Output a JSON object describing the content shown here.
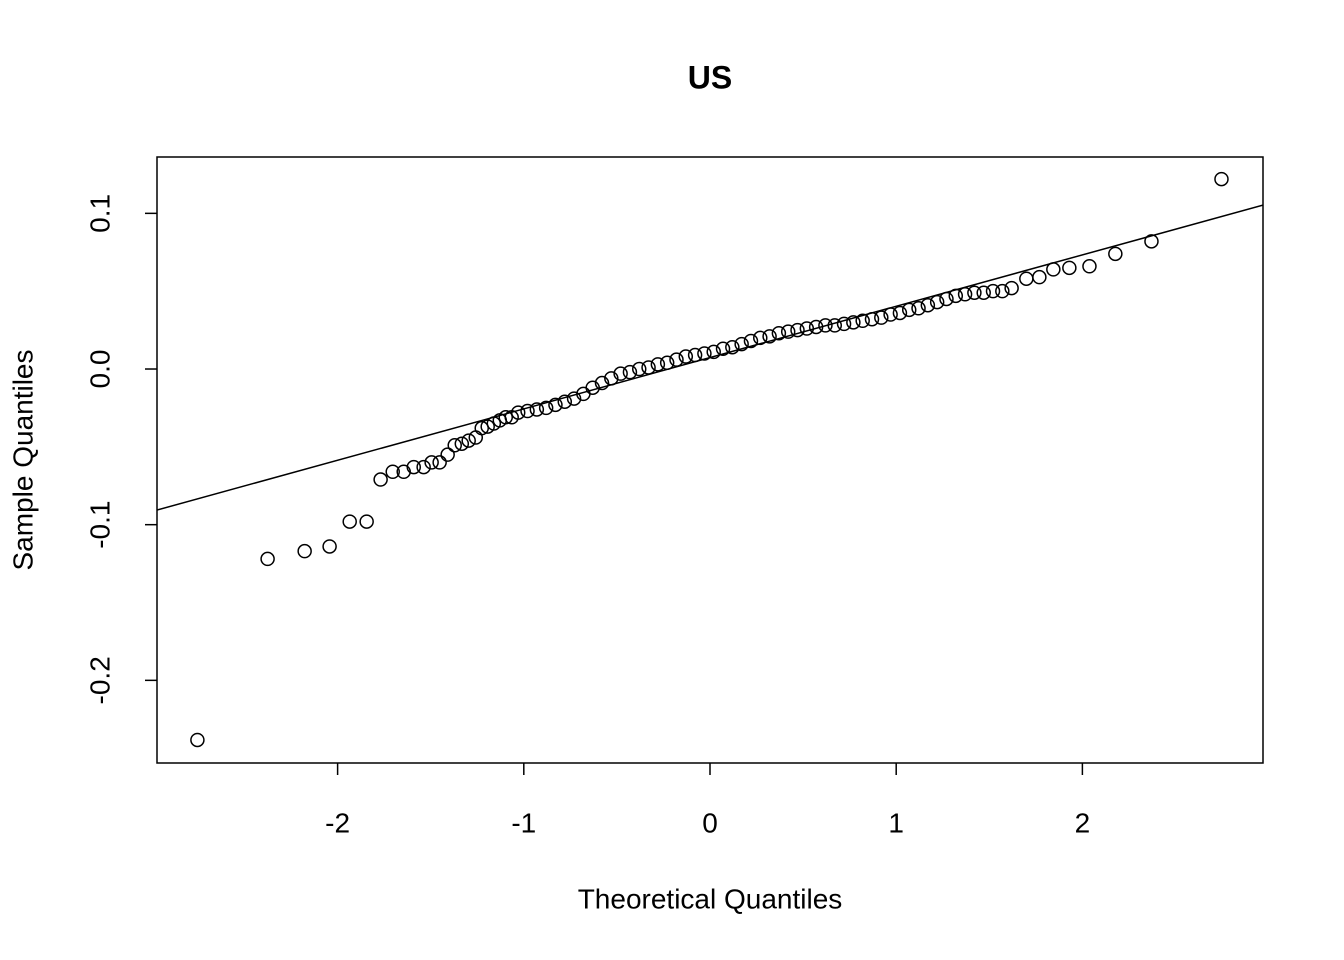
{
  "chart_data": {
    "type": "scatter",
    "title": "US",
    "x_label": "Theoretical Quantiles",
    "y_label": "Sample Quantiles",
    "xlim": [
      -2.97,
      2.97
    ],
    "ylim": [
      -0.2531,
      0.1362
    ],
    "xticks": [
      -2,
      -1,
      0,
      1,
      2
    ],
    "yticks": [
      -0.2,
      -0.1,
      {
        "value": 0,
        "label": "0.0"
      },
      0.1
    ],
    "x": [
      -2.753,
      -2.376,
      -2.177,
      -2.043,
      -1.935,
      -1.844,
      -1.769,
      -1.704,
      -1.645,
      -1.591,
      -1.538,
      -1.495,
      -1.452,
      -1.409,
      -1.371,
      -1.333,
      -1.296,
      -1.258,
      -1.226,
      -1.194,
      -1.161,
      -1.129,
      -1.097,
      -1.065,
      -1.03,
      -0.98,
      -0.93,
      -0.88,
      -0.83,
      -0.78,
      -0.73,
      -0.68,
      -0.63,
      -0.58,
      -0.53,
      -0.48,
      -0.43,
      -0.38,
      -0.33,
      -0.28,
      -0.23,
      -0.18,
      -0.13,
      -0.08,
      -0.03,
      0.02,
      0.07,
      0.12,
      0.17,
      0.22,
      0.27,
      0.32,
      0.37,
      0.42,
      0.47,
      0.52,
      0.57,
      0.62,
      0.67,
      0.72,
      0.77,
      0.82,
      0.87,
      0.92,
      0.97,
      1.02,
      1.07,
      1.12,
      1.17,
      1.22,
      1.27,
      1.32,
      1.37,
      1.42,
      1.47,
      1.52,
      1.57,
      1.62,
      1.699,
      1.769,
      1.844,
      1.93,
      2.038,
      2.177,
      2.371,
      2.747
    ],
    "y": [
      -0.2383,
      -0.122,
      -0.117,
      -0.114,
      -0.098,
      -0.098,
      -0.071,
      -0.066,
      -0.066,
      -0.063,
      -0.063,
      -0.06,
      -0.06,
      -0.055,
      -0.049,
      -0.048,
      -0.046,
      -0.044,
      -0.038,
      -0.037,
      -0.035,
      -0.033,
      -0.031,
      -0.031,
      -0.028,
      -0.027,
      -0.026,
      -0.025,
      -0.023,
      -0.021,
      -0.019,
      -0.016,
      -0.012,
      -0.009,
      -0.006,
      -0.003,
      -0.002,
      0.0,
      0.001,
      0.003,
      0.004,
      0.006,
      0.008,
      0.009,
      0.01,
      0.011,
      0.013,
      0.014,
      0.016,
      0.018,
      0.02,
      0.021,
      0.023,
      0.024,
      0.025,
      0.026,
      0.027,
      0.028,
      0.028,
      0.029,
      0.03,
      0.031,
      0.032,
      0.033,
      0.035,
      0.036,
      0.038,
      0.039,
      0.041,
      0.043,
      0.045,
      0.047,
      0.048,
      0.049,
      0.049,
      0.05,
      0.05,
      0.052,
      0.058,
      0.059,
      0.064,
      0.065,
      0.066,
      0.074,
      0.082,
      0.122
    ],
    "line_x": [
      -2.97,
      2.97
    ],
    "line_y": [
      -0.0906,
      0.1053
    ],
    "color": "#000000"
  }
}
